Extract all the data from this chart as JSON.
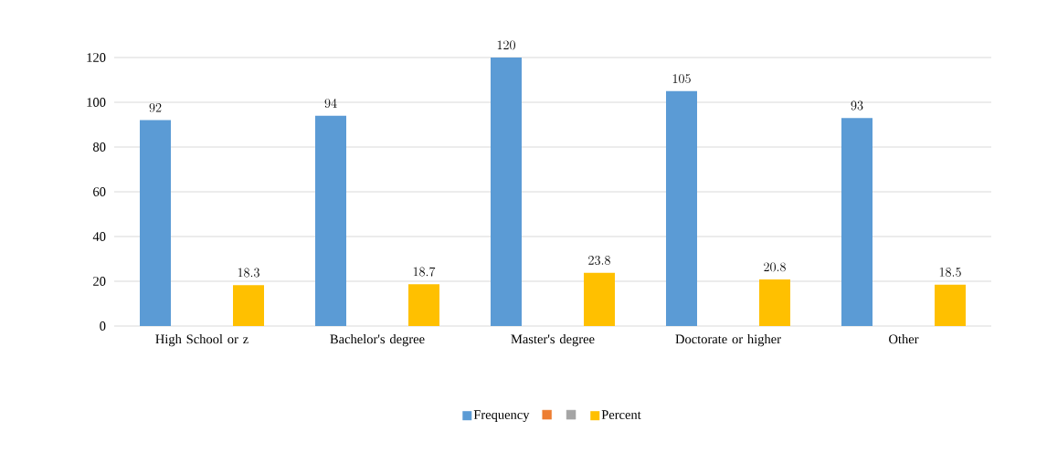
{
  "chart_data": {
    "type": "bar",
    "categories": [
      "High School or z",
      "Bachelor's degree",
      "Master's degree",
      "Doctorate or higher",
      "Other"
    ],
    "series": [
      {
        "name": "Frequency",
        "color": "#5b9bd5",
        "values": [
          92,
          94,
          120,
          105,
          93
        ]
      },
      {
        "color": "#ed7d31",
        "values": [
          null,
          null,
          null,
          null,
          null
        ]
      },
      {
        "color": "#a5a5a5",
        "values": [
          null,
          null,
          null,
          null,
          null
        ]
      },
      {
        "name": "Percent",
        "color": "#ffc000",
        "values": [
          18.3,
          18.7,
          23.8,
          20.8,
          18.5
        ]
      }
    ],
    "ylim": [
      0,
      120
    ],
    "yticks": [
      0,
      20,
      40,
      60,
      80,
      100,
      120
    ],
    "grid": "y",
    "legend": "bottom",
    "data_labels": true
  }
}
